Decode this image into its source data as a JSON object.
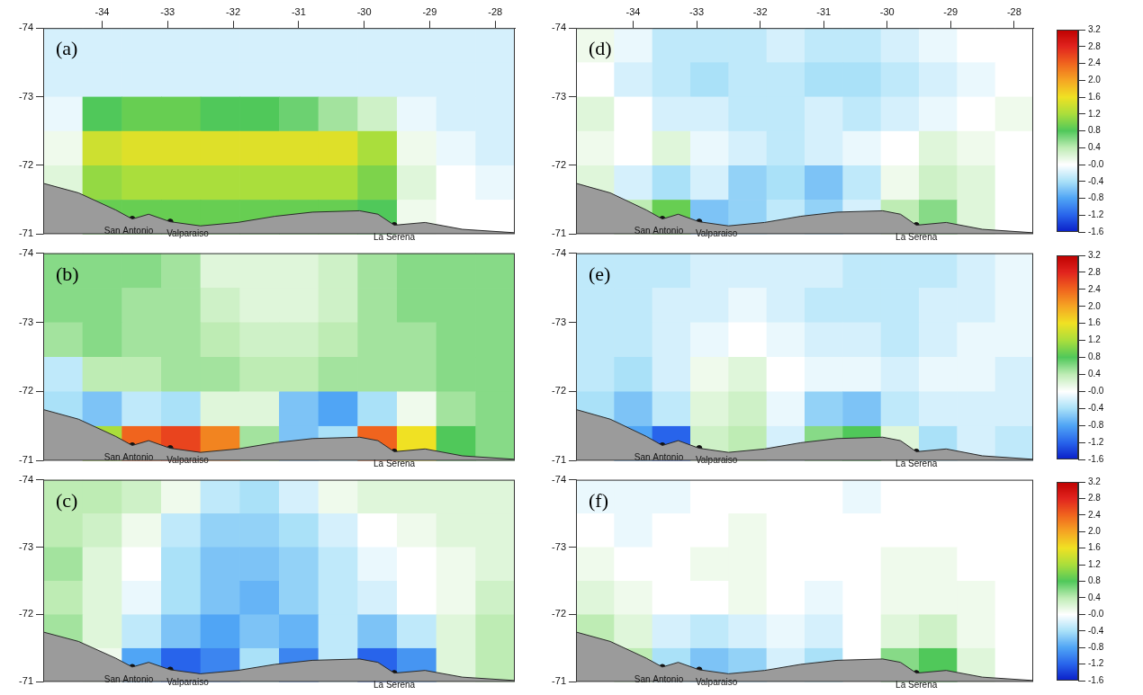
{
  "chart_data": [
    {
      "type": "heatmap",
      "title": "(a)",
      "xlim": [
        -34.9,
        -27.7
      ],
      "xticks": [
        -34,
        -33,
        -32,
        -31,
        -30,
        -29,
        -28
      ],
      "ylim": [
        -74,
        -71
      ],
      "yticks": [
        -74,
        -73,
        -72,
        -71
      ],
      "tick_labels": true,
      "grid": false,
      "cells": [
        [
          -0.2,
          -0.2,
          -0.2,
          -0.2,
          -0.2,
          -0.2,
          -0.2,
          -0.2,
          -0.2,
          -0.2,
          -0.2,
          -0.2
        ],
        [
          -0.2,
          -0.2,
          -0.2,
          -0.2,
          -0.2,
          -0.2,
          -0.2,
          -0.2,
          -0.2,
          -0.2,
          -0.2,
          -0.2
        ],
        [
          -0.1,
          0.8,
          0.9,
          0.9,
          0.8,
          0.8,
          0.7,
          0.5,
          0.3,
          -0.1,
          -0.2,
          -0.2
        ],
        [
          0.1,
          1.4,
          1.5,
          1.5,
          1.5,
          1.5,
          1.5,
          1.5,
          1.2,
          0.1,
          -0.1,
          -0.2
        ],
        [
          0.2,
          1.1,
          1.2,
          1.2,
          1.2,
          1.2,
          1.2,
          1.2,
          1.0,
          0.2,
          0,
          -0.1
        ],
        [
          0,
          0.9,
          0.9,
          0.9,
          0.9,
          0.9,
          0.9,
          0.9,
          0.8,
          0.1,
          0,
          0
        ]
      ]
    },
    {
      "type": "heatmap",
      "title": "(b)",
      "xlim": [
        -34.9,
        -27.7
      ],
      "xticks": [
        -34,
        -33,
        -32,
        -31,
        -30,
        -29,
        -28
      ],
      "ylim": [
        -74,
        -71
      ],
      "yticks": [
        -74,
        -73,
        -72,
        -71
      ],
      "tick_labels": "y",
      "grid": false,
      "cells": [
        [
          0.6,
          0.6,
          0.6,
          0.5,
          0.2,
          0.2,
          0.2,
          0.3,
          0.5,
          0.6,
          0.6,
          0.6
        ],
        [
          0.6,
          0.6,
          0.5,
          0.5,
          0.3,
          0.2,
          0.2,
          0.3,
          0.5,
          0.6,
          0.6,
          0.6
        ],
        [
          0.5,
          0.6,
          0.5,
          0.5,
          0.4,
          0.3,
          0.3,
          0.4,
          0.5,
          0.5,
          0.6,
          0.6
        ],
        [
          -0.3,
          0.4,
          0.4,
          0.5,
          0.5,
          0.4,
          0.4,
          0.5,
          0.5,
          0.5,
          0.6,
          0.6
        ],
        [
          -0.4,
          -0.6,
          -0.3,
          -0.4,
          0.2,
          0.2,
          -0.6,
          -0.8,
          -0.4,
          0.1,
          0.5,
          0.6
        ],
        [
          0,
          1.2,
          2.4,
          2.6,
          2.2,
          0.5,
          -0.6,
          -0.4,
          2.4,
          1.6,
          0.8,
          0.6
        ]
      ]
    },
    {
      "type": "heatmap",
      "title": "(c)",
      "xlim": [
        -34.9,
        -27.7
      ],
      "xticks": [
        -34,
        -33,
        -32,
        -31,
        -30,
        -29,
        -28
      ],
      "ylim": [
        -74,
        -71
      ],
      "yticks": [
        -74,
        -73,
        -72,
        -71
      ],
      "tick_labels": "y",
      "grid": false,
      "cells": [
        [
          0.4,
          0.4,
          0.3,
          0.1,
          -0.3,
          -0.4,
          -0.2,
          0.1,
          0.2,
          0.2,
          0.2,
          0.2
        ],
        [
          0.4,
          0.3,
          0.1,
          -0.3,
          -0.5,
          -0.5,
          -0.4,
          -0.2,
          0,
          0.1,
          0.2,
          0.2
        ],
        [
          0.5,
          0.2,
          0,
          -0.4,
          -0.6,
          -0.6,
          -0.5,
          -0.3,
          -0.1,
          0,
          0.1,
          0.2
        ],
        [
          0.4,
          0.2,
          -0.1,
          -0.4,
          -0.6,
          -0.7,
          -0.5,
          -0.3,
          -0.2,
          0,
          0.1,
          0.3
        ],
        [
          0.5,
          0.2,
          -0.3,
          -0.6,
          -0.8,
          -0.6,
          -0.7,
          -0.3,
          -0.6,
          -0.3,
          0.2,
          0.4
        ],
        [
          0,
          0.1,
          -0.8,
          -1.2,
          -1.0,
          -0.4,
          -1.0,
          -0.3,
          -1.2,
          -0.9,
          0.2,
          0.4
        ]
      ]
    },
    {
      "type": "heatmap",
      "title": "(d)",
      "xlim": [
        -34.9,
        -27.7
      ],
      "xticks": [
        -34,
        -33,
        -32,
        -31,
        -30,
        -29,
        -28
      ],
      "ylim": [
        -74,
        -71
      ],
      "yticks": [
        -74,
        -73,
        -72,
        -71
      ],
      "tick_labels": true,
      "grid": false,
      "cells": [
        [
          0.1,
          -0.1,
          -0.3,
          -0.3,
          -0.3,
          -0.2,
          -0.3,
          -0.3,
          -0.2,
          -0.1,
          0,
          0
        ],
        [
          0,
          -0.2,
          -0.3,
          -0.4,
          -0.3,
          -0.3,
          -0.4,
          -0.4,
          -0.3,
          -0.2,
          -0.1,
          0
        ],
        [
          0.2,
          0,
          -0.2,
          -0.2,
          -0.3,
          -0.3,
          -0.2,
          -0.3,
          -0.2,
          -0.1,
          0,
          0.1
        ],
        [
          0.1,
          0,
          0.2,
          -0.1,
          -0.2,
          -0.3,
          -0.2,
          -0.1,
          0,
          0.2,
          0.1,
          0
        ],
        [
          0.2,
          -0.2,
          -0.4,
          -0.2,
          -0.5,
          -0.4,
          -0.6,
          -0.3,
          0.1,
          0.3,
          0.2,
          0
        ],
        [
          0,
          0.4,
          0.9,
          -0.6,
          -0.5,
          -0.3,
          -0.5,
          -0.2,
          0.4,
          0.6,
          0.2,
          0
        ]
      ],
      "colorbar": {
        "range": [
          -1.6,
          3.2
        ],
        "ticks": [
          3.2,
          2.8,
          2.4,
          {
            "value": 2,
            "label": "2.0"
          },
          1.6,
          1.2,
          0.8,
          0.4,
          {
            "value": 0,
            "label": "-0.0"
          },
          -0.4,
          -0.8,
          -1.2,
          -1.6
        ]
      }
    },
    {
      "type": "heatmap",
      "title": "(e)",
      "xlim": [
        -34.9,
        -27.7
      ],
      "xticks": [
        -34,
        -33,
        -32,
        -31,
        -30,
        -29,
        -28
      ],
      "ylim": [
        -74,
        -71
      ],
      "yticks": [
        -74,
        -73,
        -72,
        -71
      ],
      "tick_labels": "y",
      "grid": false,
      "cells": [
        [
          -0.3,
          -0.3,
          -0.3,
          -0.2,
          -0.2,
          -0.2,
          -0.2,
          -0.3,
          -0.3,
          -0.3,
          -0.2,
          -0.1
        ],
        [
          -0.3,
          -0.3,
          -0.2,
          -0.2,
          -0.1,
          -0.2,
          -0.3,
          -0.3,
          -0.3,
          -0.2,
          -0.2,
          -0.1
        ],
        [
          -0.3,
          -0.3,
          -0.2,
          -0.1,
          0,
          -0.1,
          -0.2,
          -0.2,
          -0.3,
          -0.2,
          -0.1,
          -0.1
        ],
        [
          -0.3,
          -0.4,
          -0.2,
          0.1,
          0.2,
          0,
          -0.1,
          -0.1,
          -0.2,
          -0.1,
          -0.1,
          -0.2
        ],
        [
          -0.4,
          -0.6,
          -0.3,
          0.2,
          0.3,
          -0.1,
          -0.5,
          -0.6,
          -0.3,
          -0.2,
          -0.2,
          -0.2
        ],
        [
          0,
          -0.8,
          -1.2,
          0.3,
          0.4,
          -0.2,
          0.6,
          0.8,
          0.2,
          -0.4,
          -0.2,
          -0.3
        ]
      ],
      "colorbar": {
        "range": [
          -1.6,
          3.2
        ],
        "ticks": [
          3.2,
          2.8,
          2.4,
          {
            "value": 2,
            "label": "2.0"
          },
          1.6,
          1.2,
          0.8,
          0.4,
          {
            "value": 0,
            "label": "-0.0"
          },
          -0.4,
          -0.8,
          -1.2,
          -1.6
        ]
      }
    },
    {
      "type": "heatmap",
      "title": "(f)",
      "xlim": [
        -34.9,
        -27.7
      ],
      "xticks": [
        -34,
        -33,
        -32,
        -31,
        -30,
        -29,
        -28
      ],
      "ylim": [
        -74,
        -71
      ],
      "yticks": [
        -74,
        -73,
        -72,
        -71
      ],
      "tick_labels": "y",
      "grid": false,
      "cells": [
        [
          -0.1,
          -0.1,
          -0.1,
          0,
          0,
          0,
          0,
          -0.1,
          0,
          0,
          0,
          0
        ],
        [
          0,
          -0.1,
          0,
          0,
          0.1,
          0,
          0,
          0,
          0,
          0,
          0,
          0
        ],
        [
          0.1,
          0,
          0,
          0.1,
          0.1,
          0,
          0,
          0,
          0.1,
          0.1,
          0,
          0
        ],
        [
          0.2,
          0.1,
          0,
          0,
          0.1,
          0,
          -0.1,
          0,
          0.1,
          0.1,
          0.1,
          0
        ],
        [
          0.4,
          0.2,
          -0.2,
          -0.3,
          -0.2,
          -0.1,
          -0.2,
          0,
          0.2,
          0.3,
          0.1,
          0
        ],
        [
          0,
          0.4,
          -0.4,
          -0.6,
          -0.5,
          -0.2,
          -0.4,
          0,
          0.6,
          0.8,
          0.2,
          0
        ]
      ],
      "colorbar": {
        "range": [
          -1.6,
          3.2
        ],
        "ticks": [
          3.2,
          2.8,
          2.4,
          {
            "value": 2,
            "label": "2.0"
          },
          1.6,
          1.2,
          0.8,
          0.4,
          {
            "value": 0,
            "label": "-0.0"
          },
          -0.4,
          -0.8,
          -1.2,
          -1.6
        ]
      }
    }
  ],
  "grid_cells": {
    "x_edges": [
      -34.9,
      -34.3,
      -33.7,
      -33.1,
      -32.5,
      -31.9,
      -31.3,
      -30.7,
      -30.1,
      -29.5,
      -28.9,
      -28.3,
      -27.7
    ],
    "y_edges": [
      -74,
      -73.5,
      -73,
      -72.5,
      -72,
      -71.5,
      -71
    ]
  },
  "coastline": {
    "x": [
      -34.9,
      -34.36,
      -33.79,
      -33.54,
      -33.29,
      -32.96,
      -32.5,
      -31.93,
      -31.36,
      -30.79,
      -30.07,
      -29.79,
      -29.54,
      -29.07,
      -28.5,
      -27.7
    ],
    "y": [
      -71.74,
      -71.6,
      -71.35,
      -71.22,
      -71.29,
      -71.18,
      -71.12,
      -71.17,
      -71.26,
      -71.32,
      -71.34,
      -71.29,
      -71.13,
      -71.17,
      -71.07,
      -71.02
    ]
  },
  "places": [
    {
      "name": "San Antonio",
      "x": -33.54,
      "y": -71.22
    },
    {
      "name": "Valparaiso",
      "x": -32.96,
      "y": -71.18
    },
    {
      "name": "La Serena",
      "x": -29.54,
      "y": -71.13
    }
  ]
}
